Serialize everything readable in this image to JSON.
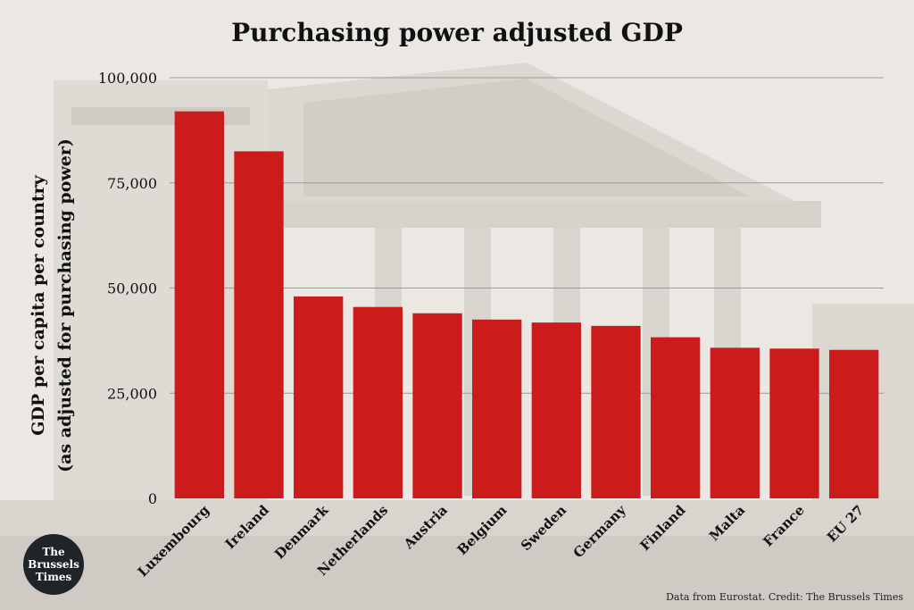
{
  "title": "Purchasing power adjusted GDP",
  "ylabel_line1": "GDP per capita per country",
  "ylabel_line2": "(as adjusted for purchasing power)",
  "credit": "Data from Eurostat. Credit: The Brussels Times",
  "logo": {
    "line1": "The",
    "line2": "Brussels",
    "line3": "Times"
  },
  "colors": {
    "bar": "#cc1b1b",
    "grid": "#9a9a9a",
    "text": "#111111"
  },
  "chart_data": {
    "type": "bar",
    "title": "Purchasing power adjusted GDP",
    "ylabel": "GDP per capita per country (as adjusted for purchasing power)",
    "categories": [
      "Luxembourg",
      "Ireland",
      "Denmark",
      "Netherlands",
      "Austria",
      "Belgium",
      "Sweden",
      "Germany",
      "Finland",
      "Malta",
      "France",
      "EU 27"
    ],
    "values": [
      92000,
      82500,
      48000,
      45500,
      44000,
      42500,
      41800,
      41000,
      38300,
      35800,
      35600,
      35300
    ],
    "ylim": [
      0,
      100000
    ],
    "yticks": [
      0,
      25000,
      50000,
      75000,
      100000
    ],
    "ytick_labels": [
      "0",
      "25,000",
      "50,000",
      "75,000",
      "100,000"
    ],
    "grid": true,
    "legend": "none"
  }
}
